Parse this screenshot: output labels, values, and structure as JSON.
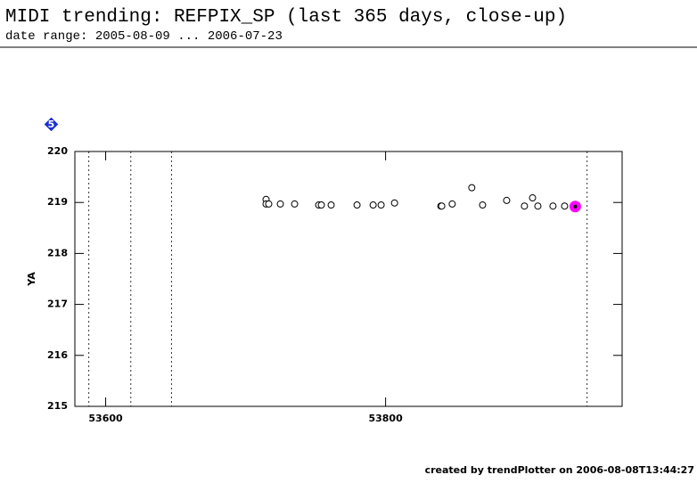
{
  "chart_data": {
    "type": "scatter",
    "title": "MIDI trending: REFPIX_SP (last 365 days, close-up)",
    "subtitle": "date range: 2005-08-09 ... 2006-07-23",
    "badge": "5",
    "ylabel": "YA",
    "footer": "created by trendPlotter on 2006-08-08T13:44:27",
    "xlim": [
      53578,
      53969
    ],
    "ylim": [
      215,
      220
    ],
    "xticks": [
      53600,
      53800
    ],
    "yticks": [
      215,
      216,
      217,
      218,
      219,
      220
    ],
    "event_lines": [
      53588,
      53618,
      53647,
      53944
    ],
    "color": "#000000",
    "highlight_color": "#ff00ff",
    "x": [
      53714.6,
      53714.6,
      53716.5,
      53724.8,
      53735,
      53752.2,
      53754.1,
      53761.1,
      53779.6,
      53791.1,
      53796.8,
      53806.4,
      53839.5,
      53840.1,
      53847.6,
      53861.6,
      53869.3,
      53886.5,
      53899.2,
      53905,
      53908.8,
      53919.6,
      53927.9,
      53935.5
    ],
    "values": [
      219.06,
      218.97,
      218.97,
      218.97,
      218.97,
      218.95,
      218.95,
      218.95,
      218.95,
      218.95,
      218.95,
      218.99,
      218.93,
      218.93,
      218.97,
      219.29,
      218.95,
      219.04,
      218.93,
      219.09,
      218.93,
      218.93,
      218.93,
      218.92
    ]
  }
}
